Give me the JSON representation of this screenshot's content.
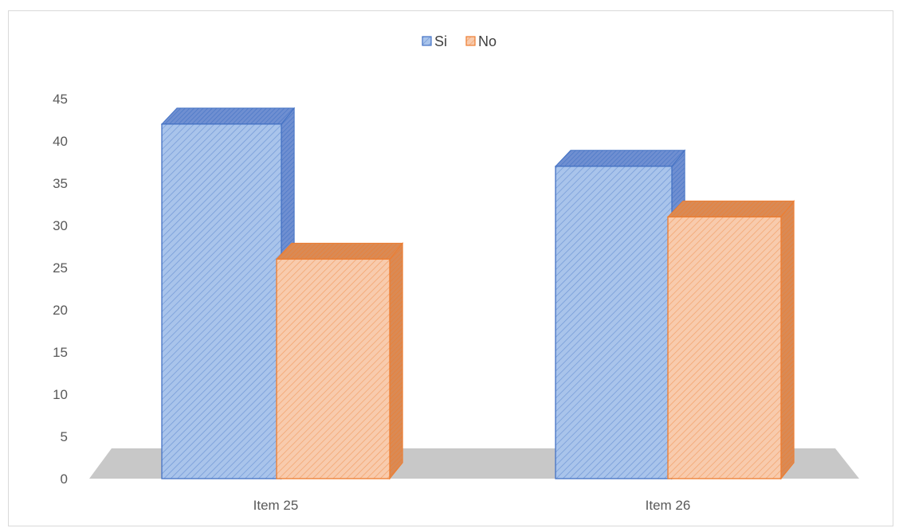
{
  "chart_data": {
    "type": "bar",
    "title": "",
    "xlabel": "",
    "ylabel": "",
    "categories": [
      "Item 25",
      "Item 26"
    ],
    "series": [
      {
        "name": "Si",
        "values": [
          42,
          37
        ],
        "color": "#a9c4eb",
        "edge": "#4472c4",
        "top": "#6f8fd1"
      },
      {
        "name": "No",
        "values": [
          26,
          31
        ],
        "color": "#f8cbad",
        "edge": "#ed7d31",
        "top": "#d98a55"
      }
    ],
    "ylim": [
      0,
      45
    ],
    "yticks": [
      0,
      5,
      10,
      15,
      20,
      25,
      30,
      35,
      40,
      45
    ],
    "grid": false,
    "legend_position": "top-center",
    "style": "3d-clustered-column-hatched"
  }
}
